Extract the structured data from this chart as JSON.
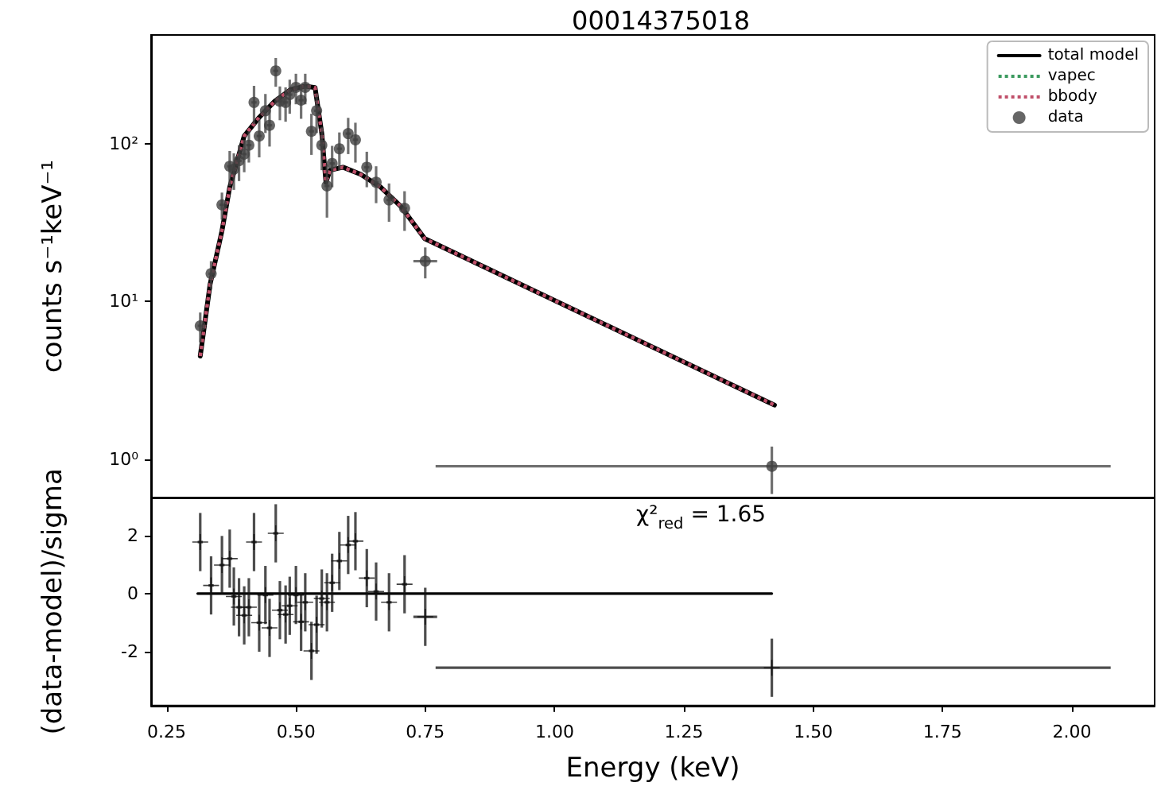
{
  "chart_data": [
    {
      "type": "scatter",
      "title": "00014375018",
      "ylabel": "counts s⁻¹keV⁻¹",
      "xlim": [
        0.22,
        2.16
      ],
      "xticks": [
        0.25,
        0.5,
        0.75,
        1,
        1.25,
        1.5,
        1.75,
        2
      ],
      "ylim": [
        0.57,
        490
      ],
      "yticks": [
        {
          "value": 1,
          "label": "10⁰"
        },
        {
          "value": 10,
          "label": "10¹"
        },
        {
          "value": 100,
          "label": "10²"
        }
      ],
      "log": "y",
      "tick_labels": "y",
      "legend": "top right",
      "grid": false,
      "series": [
        {
          "name": "total model",
          "type": "line",
          "color": "#000000",
          "line_style": "solid",
          "marker": "none",
          "x": [
            0.315,
            0.334,
            0.357,
            0.372,
            0.4,
            0.429,
            0.459,
            0.49,
            0.518,
            0.537,
            0.55,
            0.558,
            0.566,
            0.591,
            0.625,
            0.664,
            0.703,
            0.749,
            1.425
          ],
          "values": [
            4.5,
            12.8,
            28,
            53,
            112,
            147,
            186,
            221,
            232,
            227,
            116,
            57,
            68,
            71,
            64,
            53,
            40,
            25,
            2.2
          ]
        },
        {
          "name": "vapec",
          "type": "line",
          "color": "#3c9a5f",
          "line_style": "dotted",
          "marker": "none"
        },
        {
          "name": "bbody",
          "type": "line",
          "color": "#c0506a",
          "line_style": "dotted",
          "marker": "none",
          "x": [
            0.315,
            0.334,
            0.357,
            0.372,
            0.4,
            0.429,
            0.459,
            0.49,
            0.518,
            0.537,
            0.55,
            0.558,
            0.566,
            0.591,
            0.625,
            0.664,
            0.703,
            0.749,
            1.425
          ],
          "values": [
            4.5,
            12.8,
            28,
            53,
            112,
            147,
            186,
            221,
            232,
            227,
            116,
            57,
            68,
            71,
            64,
            53,
            40,
            25,
            2.2
          ]
        },
        {
          "name": "data",
          "type": "scatter",
          "color": "#404040",
          "marker": "circle",
          "x": [
            0.315,
            0.336,
            0.357,
            0.372,
            0.38,
            0.39,
            0.4,
            0.409,
            0.419,
            0.429,
            0.441,
            0.449,
            0.461,
            0.469,
            0.48,
            0.488,
            0.5,
            0.51,
            0.518,
            0.53,
            0.54,
            0.55,
            0.56,
            0.57,
            0.584,
            0.601,
            0.615,
            0.637,
            0.655,
            0.68,
            0.71,
            0.75,
            1.42
          ],
          "values": [
            7,
            15,
            41,
            72,
            69,
            78,
            86,
            98,
            183,
            112,
            162,
            131,
            290,
            186,
            183,
            205,
            228,
            189,
            228,
            120,
            162,
            98,
            54,
            75,
            93,
            116,
            106,
            71,
            57,
            44,
            39,
            18,
            0.9
          ],
          "errors": [
            1.5,
            3,
            8,
            18,
            18,
            20,
            20,
            22,
            50,
            30,
            45,
            35,
            60,
            45,
            45,
            50,
            50,
            45,
            50,
            35,
            45,
            30,
            20,
            22,
            25,
            30,
            30,
            18,
            15,
            12,
            11,
            4,
            0.3
          ],
          "xerrors": [
            0.005,
            0.005,
            0.005,
            0.005,
            0.005,
            0.005,
            0.005,
            0.005,
            0.005,
            0.005,
            0.005,
            0.005,
            0.005,
            0.005,
            0.005,
            0.005,
            0.005,
            0.005,
            0.005,
            0.005,
            0.005,
            0.005,
            0.005,
            0.005,
            0.005,
            0.005,
            0.005,
            0.005,
            0.005,
            0.005,
            0.005,
            0.023,
            [
              0.77,
              2.075
            ]
          ]
        }
      ]
    },
    {
      "type": "scatter",
      "xlabel": "Energy (keV)",
      "ylabel": "(data-model)/sigma",
      "annotations": [
        "χ²$_{red}$ = 1.65"
      ],
      "xlim": [
        0.22,
        2.16
      ],
      "xticks": [
        0.25,
        {
          "value": 0.5,
          "label": "0.50"
        },
        0.75,
        {
          "value": 1,
          "label": "1.00"
        },
        1.25,
        {
          "value": 1.5,
          "label": "1.50"
        },
        1.75,
        {
          "value": 2,
          "label": "2.00"
        }
      ],
      "ylim": [
        -3.85,
        3.3
      ],
      "yticks": [
        -2,
        0,
        2
      ],
      "grid": false,
      "legend": false,
      "series": [
        {
          "type": "line",
          "color": "#000000",
          "line_style": "solid",
          "marker": "none",
          "x": [
            0.31,
            1.42
          ],
          "values": [
            0,
            0
          ]
        },
        {
          "type": "scatter",
          "color": "#111111",
          "marker": "cross",
          "x": [
            0.315,
            0.336,
            0.357,
            0.372,
            0.38,
            0.39,
            0.4,
            0.409,
            0.419,
            0.429,
            0.441,
            0.449,
            0.461,
            0.469,
            0.48,
            0.488,
            0.5,
            0.51,
            0.518,
            0.53,
            0.54,
            0.55,
            0.56,
            0.57,
            0.584,
            0.601,
            0.615,
            0.637,
            0.655,
            0.68,
            0.71,
            0.75,
            1.42
          ],
          "values": [
            1.77,
            0.28,
            0.98,
            1.2,
            -0.1,
            -0.47,
            -0.75,
            -0.47,
            1.77,
            -1.0,
            -0.05,
            -1.18,
            2.07,
            -0.57,
            -0.72,
            -0.42,
            -0.05,
            -0.97,
            -0.3,
            -1.97,
            -1.07,
            -0.17,
            -0.3,
            0.37,
            1.12,
            1.67,
            1.8,
            0.53,
            0.07,
            -0.3,
            0.32,
            -0.8,
            -2.55
          ],
          "errors": [
            1,
            1,
            1,
            1,
            1,
            1,
            1,
            1,
            1,
            1,
            1,
            1,
            1,
            1,
            1,
            1,
            1,
            1,
            1,
            1,
            1,
            1,
            1,
            1,
            1,
            1,
            1,
            1,
            1,
            1,
            1,
            1,
            1
          ],
          "xerrors": [
            0.005,
            0.005,
            0.005,
            0.005,
            0.005,
            0.005,
            0.005,
            0.005,
            0.005,
            0.005,
            0.005,
            0.005,
            0.005,
            0.005,
            0.005,
            0.005,
            0.005,
            0.005,
            0.005,
            0.005,
            0.005,
            0.005,
            0.005,
            0.005,
            0.005,
            0.005,
            0.005,
            0.005,
            0.005,
            0.005,
            0.005,
            0.023,
            [
              0.77,
              2.075
            ]
          ]
        }
      ]
    }
  ]
}
